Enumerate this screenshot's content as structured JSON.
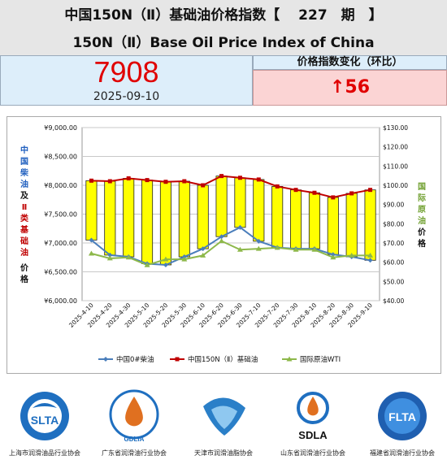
{
  "header": {
    "title_cn": "中国150N（Ⅱ）基础油价格指数【　 227　期　】",
    "title_en": "150N（Ⅱ）Base Oil Price Index of China"
  },
  "index": {
    "value": "7908",
    "date": "2025-09-10",
    "change_title": "价格指数变化（环比）",
    "change_value": "↑56"
  },
  "left_axis_label": {
    "part1": "中国柴油",
    "part2": "及",
    "part3": "Ⅱ类基础油",
    "part4": "价格"
  },
  "right_axis_label": {
    "part1": "国际原油",
    "part2": "价格"
  },
  "colors": {
    "diesel": "#4a7ebb",
    "baseoil": "#c00000",
    "wti": "#8db84a",
    "bar_fill": "#ffff00",
    "red_text": "#e00000",
    "blue_text": "#1f5fbf",
    "green_text": "#70a030"
  },
  "chart_data": {
    "type": "line",
    "x": [
      "2025-4-10",
      "2025-4-20",
      "2025-4-30",
      "2025-5-10",
      "2025-5-20",
      "2025-5-30",
      "2025-6-10",
      "2025-6-20",
      "2025-6-30",
      "2025-7-10",
      "2025-7-20",
      "2025-7-30",
      "2025-8-10",
      "2025-8-20",
      "2025-8-30",
      "2025-9-10"
    ],
    "series": [
      {
        "name": "中国0#柴油",
        "axis": "left",
        "values": [
          7050,
          6790,
          6760,
          6640,
          6620,
          6760,
          6900,
          7110,
          7270,
          7030,
          6920,
          6900,
          6900,
          6800,
          6760,
          6700
        ]
      },
      {
        "name": "中国150N（Ⅱ）基础油",
        "axis": "left",
        "values": [
          8080,
          8070,
          8120,
          8090,
          8060,
          8070,
          8000,
          8160,
          8130,
          8100,
          7980,
          7920,
          7870,
          7790,
          7860,
          7920
        ]
      },
      {
        "name": "国际原油WTI",
        "axis": "right",
        "values": [
          64.5,
          62.0,
          62.5,
          58.5,
          61.5,
          61.5,
          63.5,
          71.0,
          66.5,
          67.0,
          67.5,
          66.5,
          66.5,
          62.5,
          63.5,
          63.5
        ]
      }
    ],
    "bars": "range between 中国0#柴油 and 中国150N（Ⅱ）基础油",
    "yleft_ticks": [
      "¥9,000.00",
      "¥8,500.00",
      "¥8,000.00",
      "¥7,500.00",
      "¥7,000.00",
      "¥6,500.00",
      "¥6,000.00"
    ],
    "yleft_lim": [
      6000,
      9000
    ],
    "yright_ticks": [
      "$130.00",
      "$120.00",
      "$110.00",
      "$100.00",
      "$90.00",
      "$80.00",
      "$70.00",
      "$60.00",
      "$50.00",
      "$40.00"
    ],
    "yright_lim": [
      40,
      130
    ],
    "legend": "bottom",
    "grid": true
  },
  "logos": [
    {
      "name": "上海市润滑油品行业协会",
      "mark": "SLTA"
    },
    {
      "name": "广东省润滑油行业协会",
      "mark": "GDLIA"
    },
    {
      "name": "天津市润滑油脂协会",
      "mark": ""
    },
    {
      "name": "山东省润滑油行业协会",
      "mark": "SDLA"
    },
    {
      "name": "福建省润滑油行业协会",
      "mark": "FLTA"
    }
  ]
}
